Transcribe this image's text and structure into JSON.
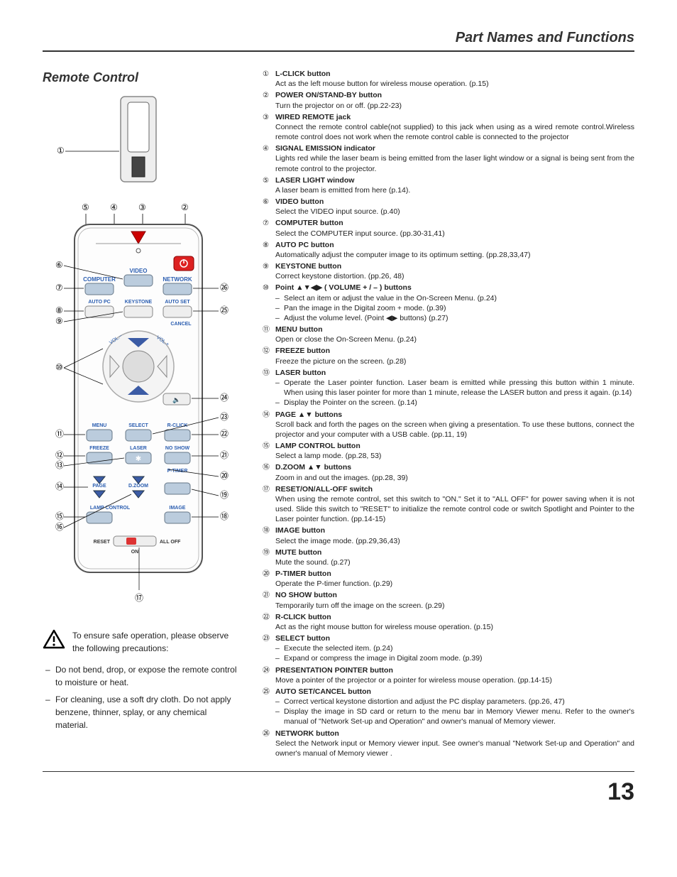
{
  "header": "Part Names and Functions",
  "section_title": "Remote Control",
  "page_number": "13",
  "caution_text": "To ensure safe operation, please observe the following precautions:",
  "precautions": [
    "Do not bend, drop, or expose the remote control to moisture or heat.",
    "For cleaning, use a soft dry cloth. Do not apply benzene, thinner, splay, or any chemical material."
  ],
  "remote_labels": {
    "video": "VIDEO",
    "computer": "COMPUTER",
    "network": "NETWORK",
    "autopc": "AUTO PC",
    "keystone": "KEYSTONE",
    "autoset": "AUTO SET",
    "cancel": "CANCEL",
    "menu": "MENU",
    "select": "SELECT",
    "rclick": "R-CLICK",
    "freeze": "FREEZE",
    "laser": "LASER",
    "noshow": "NO SHOW",
    "ptimer": "P-TIMER",
    "page": "PAGE",
    "dzoom": "D.ZOOM",
    "mute": "MUTE",
    "lampctrl": "LAMP CONTROL",
    "image": "IMAGE",
    "reset": "RESET",
    "on": "ON",
    "alloff": "ALL OFF",
    "volminus": "VOL.–",
    "volplus": "VOL.+"
  },
  "items": [
    {
      "n": "①",
      "title": "L-CLICK button",
      "desc": "Act as the left mouse button for wireless mouse operation.  (p.15)"
    },
    {
      "n": "②",
      "title": "POWER ON/STAND-BY button",
      "desc": "Turn the projector on or off.  (pp.22-23)"
    },
    {
      "n": "③",
      "title": "WIRED REMOTE jack",
      "desc": "Connect the remote control cable(not supplied) to this jack when using as a wired remote control.Wireless remote control does not work when the remote control cable is connected to the projector"
    },
    {
      "n": "④",
      "title": "SIGNAL EMISSION indicator",
      "desc": "Lights red while the laser beam is being emitted from the laser light window or a signal is being sent from the remote control to the projector."
    },
    {
      "n": "⑤",
      "title": "LASER LIGHT window",
      "desc": "A laser beam is emitted from here (p.14)."
    },
    {
      "n": "⑥",
      "title": "VIDEO button",
      "desc": "Select the VIDEO input source.  (p.40)"
    },
    {
      "n": "⑦",
      "title": "COMPUTER button",
      "desc": "Select the COMPUTER input source.  (pp.30-31,41)"
    },
    {
      "n": "⑧",
      "title": "AUTO PC button",
      "desc": "Automatically adjust the computer image to its optimum setting.  (pp.28,33,47)"
    },
    {
      "n": "⑨",
      "title": "KEYSTONE button",
      "desc": "Correct keystone distortion.  (pp.26, 48)"
    },
    {
      "n": "⑩",
      "title": "Point ▲▼◀▶ ( VOLUME + / – ) buttons",
      "subs": [
        "Select an item or adjust the value in the On-Screen Menu.  (p.24)",
        "Pan the image in the Digital zoom + mode.  (p.39)",
        "Adjust the volume level. (Point ◀▶ buttons)  (p.27)"
      ]
    },
    {
      "n": "⑪",
      "title": "MENU button",
      "desc": "Open or close the On-Screen Menu.  (p.24)"
    },
    {
      "n": "⑫",
      "title": "FREEZE button",
      "desc": "Freeze the picture on the screen.  (p.28)"
    },
    {
      "n": "⑬",
      "title": "LASER button",
      "subs": [
        "Operate the Laser pointer function.  Laser beam is emitted while pressing this button within 1 minute.  When using this laser pointer for more than 1 minute, release the LASER button and press it again.  (p.14)",
        "Display the Pointer on the screen.  (p.14)"
      ]
    },
    {
      "n": "⑭",
      "title": "PAGE ▲▼ buttons",
      "desc": "Scroll back and forth the pages on the screen when giving a presentation.  To use these buttons, connect the projector and your computer with a USB cable.  (pp.11, 19)"
    },
    {
      "n": "⑮",
      "title": "LAMP CONTROL button",
      "desc": "Select a lamp mode.  (pp.28, 53)"
    },
    {
      "n": "⑯",
      "title": "D.ZOOM ▲▼ buttons",
      "desc": "Zoom in and out the images.  (pp.28, 39)"
    },
    {
      "n": "⑰",
      "title": "RESET/ON/ALL-OFF switch",
      "desc": "When using the remote control, set this switch to \"ON.\" Set it to \"ALL OFF\" for power saving when it is not used.  Slide this switch to \"RESET\" to initialize the remote control code or switch Spotlight and Pointer to the Laser pointer function.  (pp.14-15)"
    },
    {
      "n": "⑱",
      "title": "IMAGE button",
      "desc": "Select the image mode.  (pp.29,36,43)"
    },
    {
      "n": "⑲",
      "title": "MUTE button",
      "desc": "Mute the sound.  (p.27)"
    },
    {
      "n": "⑳",
      "title": "P-TIMER button",
      "desc": "Operate the P-timer function.  (p.29)"
    },
    {
      "n": "㉑",
      "title": "NO SHOW button",
      "desc": "Temporarily turn off the image on the screen.  (p.29)"
    },
    {
      "n": "㉒",
      "title": "R-CLICK button",
      "desc": "Act as the right mouse button for wireless mouse operation.  (p.15)"
    },
    {
      "n": "㉓",
      "title": "SELECT button",
      "subs": [
        "Execute the selected item.  (p.24)",
        "Expand or compress the image in Digital zoom mode.  (p.39)"
      ]
    },
    {
      "n": "㉔",
      "title": "PRESENTATION POINTER button",
      "desc": "Move a pointer of the projector or a pointer for wireless mouse operation.  (pp.14-15)"
    },
    {
      "n": "㉕",
      "title": "AUTO SET/CANCEL button",
      "subs": [
        "Correct vertical keystone distortion and adjust the PC display parameters. (pp.26, 47)",
        "Display the image in SD card or return to the menu bar in Memory Viewer menu. Refer to the owner's manual of \"Network Set-up and Operation\" and owner's manual of Memory  viewer."
      ]
    },
    {
      "n": "㉖",
      "title": "NETWORK button",
      "desc": "Select the Network input or Memory viewer input.  See owner's manual \"Network Set-up and Operation\" and owner's manual of Memory viewer ."
    }
  ],
  "callout_nums": [
    "①",
    "②",
    "③",
    "④",
    "⑤",
    "⑥",
    "⑦",
    "⑧",
    "⑨",
    "⑩",
    "⑪",
    "⑫",
    "⑬",
    "⑭",
    "⑮",
    "⑯",
    "⑰",
    "⑱",
    "⑲",
    "⑳",
    "㉑",
    "㉒",
    "㉓",
    "㉔",
    "㉕",
    "㉖"
  ]
}
